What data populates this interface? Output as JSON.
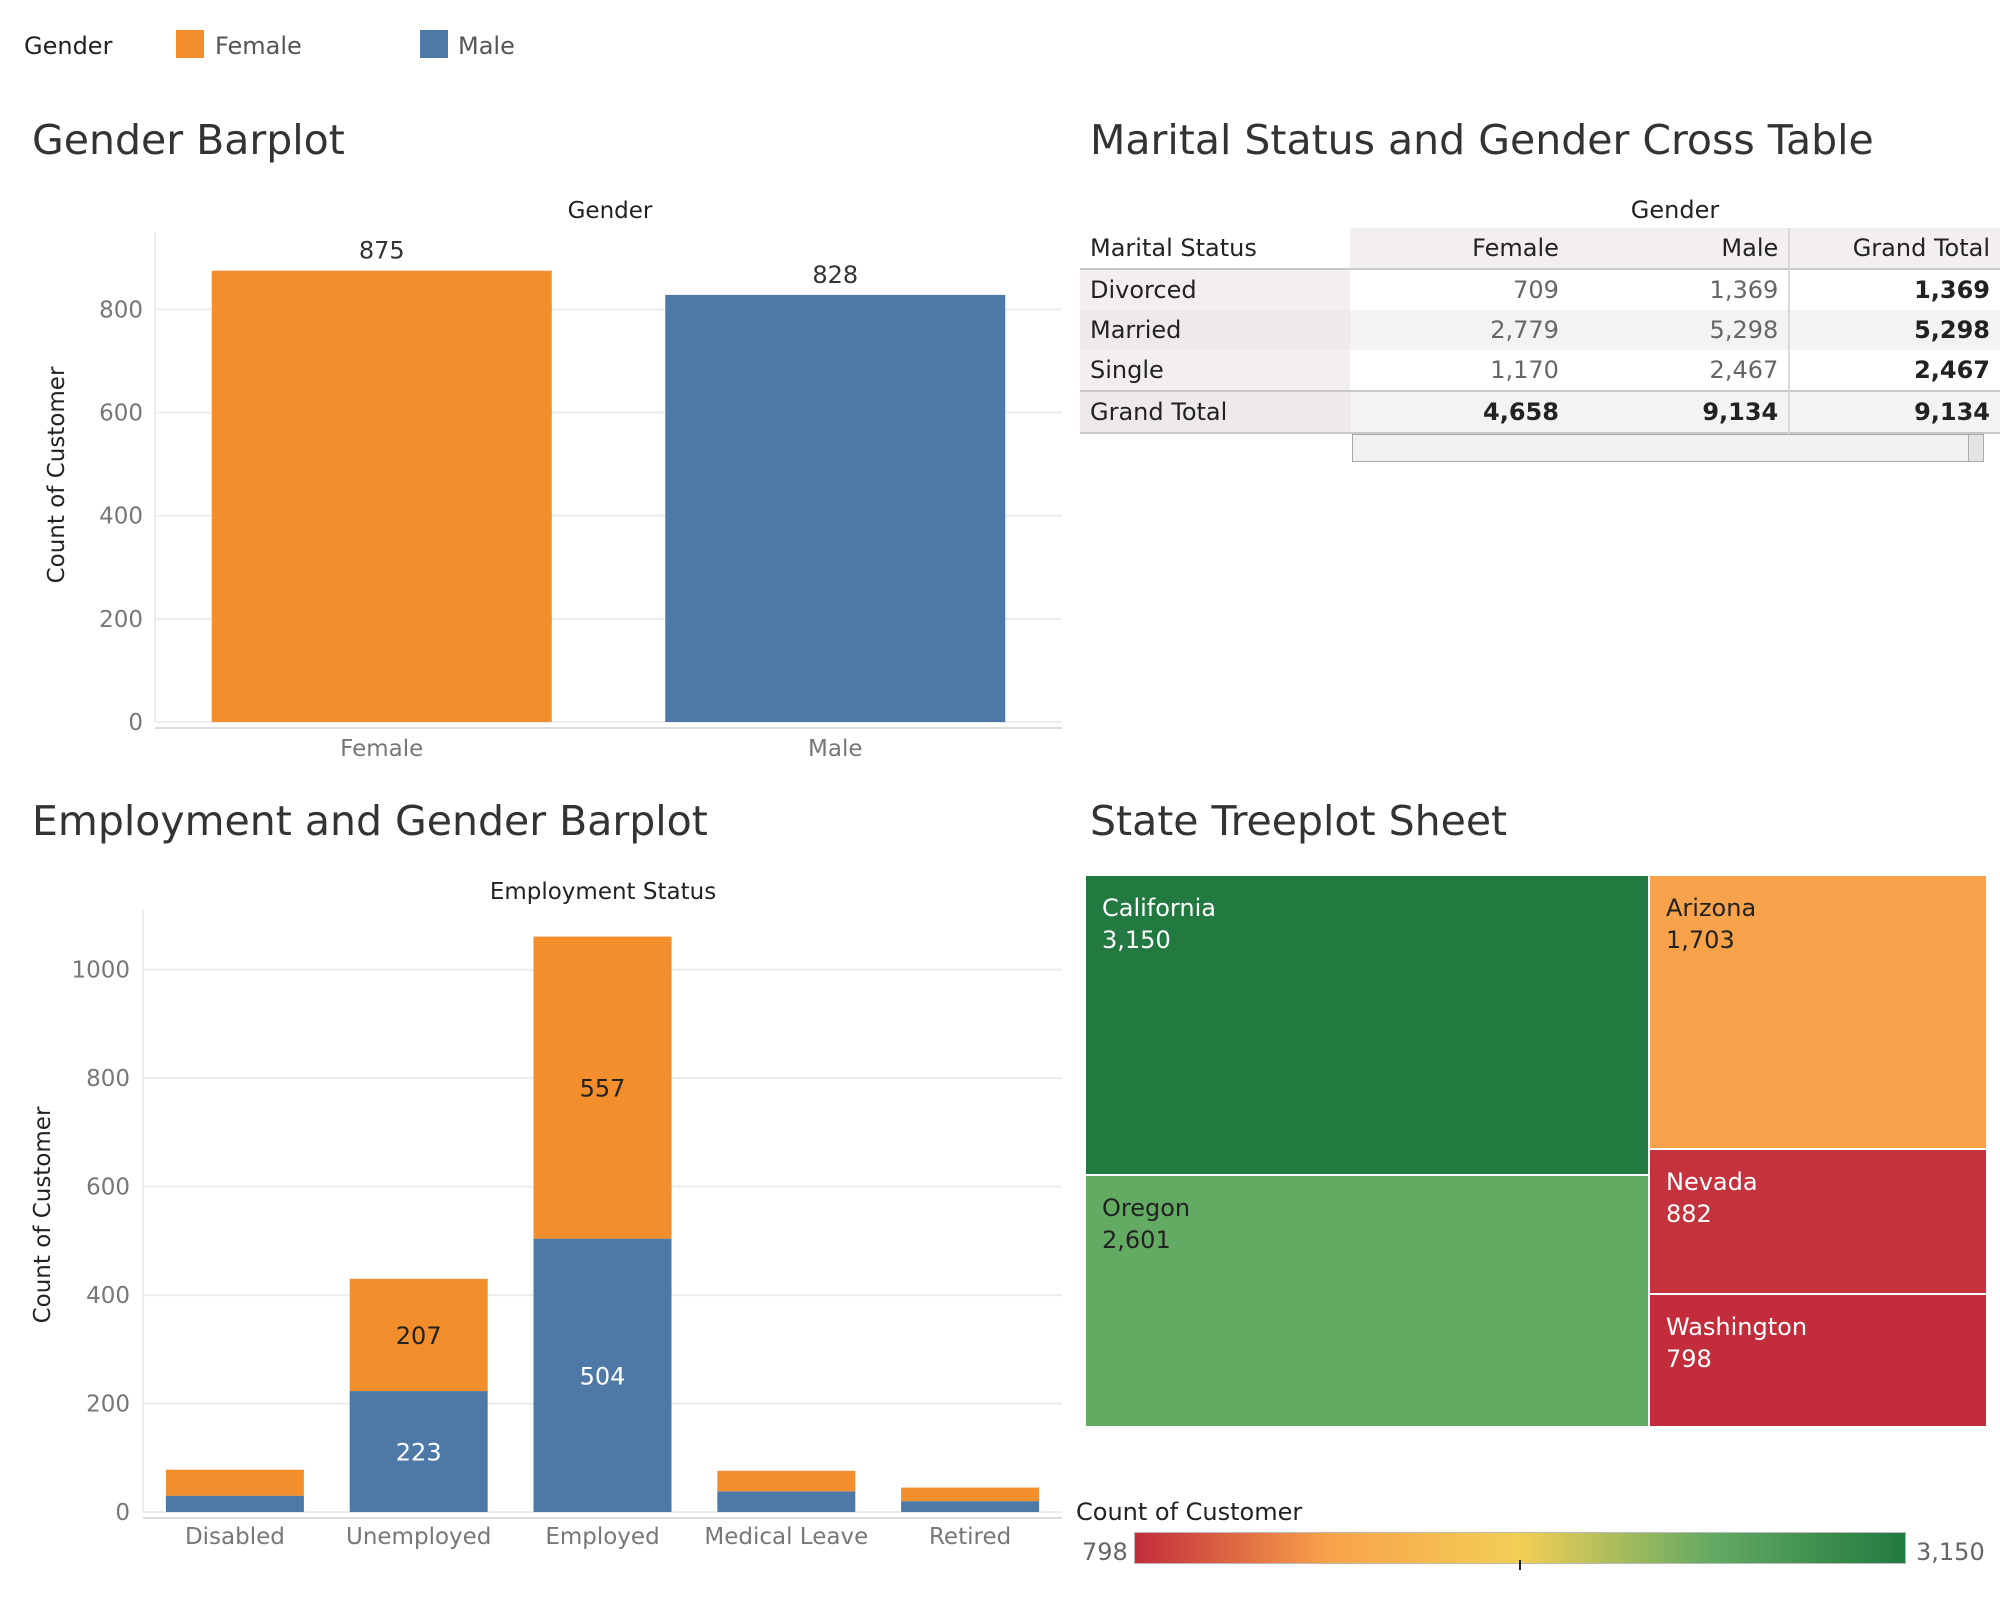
{
  "legend": {
    "title": "Gender",
    "items": [
      {
        "label": "Female",
        "color": "#f28e2b"
      },
      {
        "label": "Male",
        "color": "#4e79a7"
      }
    ]
  },
  "gender_barplot": {
    "panel_title": "Gender Barplot"
  },
  "cross_table": {
    "panel_title": "Marital Status and Gender Cross Table",
    "column_group": "Gender",
    "row_header": "Marital Status",
    "columns": [
      "Female",
      "Male",
      "Grand Total"
    ],
    "rows": [
      {
        "label": "Divorced",
        "values": [
          "709",
          "1,369",
          "1,369"
        ]
      },
      {
        "label": "Married",
        "values": [
          "2,779",
          "5,298",
          "5,298"
        ]
      },
      {
        "label": "Single",
        "values": [
          "1,170",
          "2,467",
          "2,467"
        ]
      },
      {
        "label": "Grand Total",
        "values": [
          "4,658",
          "9,134",
          "9,134"
        ]
      }
    ]
  },
  "employment_barplot": {
    "panel_title": "Employment and Gender Barplot"
  },
  "treemap": {
    "panel_title": "State Treeplot Sheet",
    "items": [
      {
        "state": "California",
        "value_label": "3,150",
        "color": "#227a40"
      },
      {
        "state": "Oregon",
        "value_label": "2,601",
        "color": "#63aa63"
      },
      {
        "state": "Arizona",
        "value_label": "1,703",
        "color": "#f8a24b"
      },
      {
        "state": "Nevada",
        "value_label": "882",
        "color": "#c4323d"
      },
      {
        "state": "Washington",
        "value_label": "798",
        "color": "#c22c3b"
      }
    ],
    "color_legend": {
      "title": "Count of Customer",
      "min_label": "798",
      "max_label": "3,150"
    }
  },
  "chart_data": [
    {
      "type": "bar",
      "title": "Gender Barplot",
      "xlabel": "Gender",
      "ylabel": "Count of Customer",
      "categories": [
        "Female",
        "Male"
      ],
      "values": [
        875,
        828
      ],
      "colors": [
        "#f28e2b",
        "#4e79a7"
      ],
      "ylim": [
        0,
        950
      ],
      "yticks": [
        0,
        200,
        400,
        600,
        800
      ],
      "data_labels": [
        "875",
        "828"
      ]
    },
    {
      "type": "bar",
      "stacked": true,
      "title": "Employment and Gender Barplot",
      "xlabel": "Employment Status",
      "ylabel": "Count of Customer",
      "categories": [
        "Disabled",
        "Unemployed",
        "Employed",
        "Medical Leave",
        "Retired"
      ],
      "series": [
        {
          "name": "Male",
          "color": "#4e79a7",
          "values": [
            30,
            223,
            504,
            38,
            20
          ],
          "labels": [
            "",
            "223",
            "504",
            "",
            ""
          ]
        },
        {
          "name": "Female",
          "color": "#f28e2b",
          "values": [
            48,
            207,
            557,
            38,
            25
          ],
          "labels": [
            "",
            "207",
            "557",
            "",
            ""
          ]
        }
      ],
      "ylim": [
        0,
        1110
      ],
      "yticks": [
        0,
        200,
        400,
        600,
        800,
        1000
      ]
    },
    {
      "type": "treemap",
      "title": "State Treeplot Sheet",
      "categories": [
        "California",
        "Oregon",
        "Arizona",
        "Nevada",
        "Washington"
      ],
      "values": [
        3150,
        2601,
        1703,
        882,
        798
      ],
      "color_scale": {
        "min": 798,
        "max": 3150,
        "colors": [
          "#c22c3b",
          "#f8a24b",
          "#f2cf55",
          "#63aa63",
          "#227a40"
        ]
      }
    }
  ]
}
